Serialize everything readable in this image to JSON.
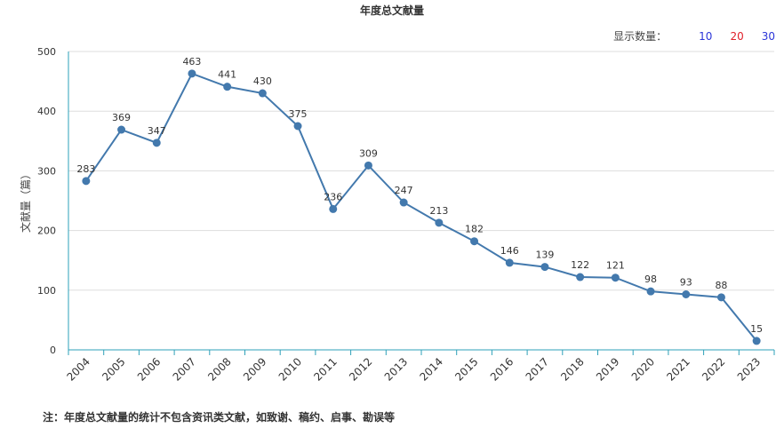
{
  "title": "年度总文献量",
  "display_count": {
    "label": "显示数量：",
    "options": [
      {
        "label": "10",
        "color": "#2b35d8"
      },
      {
        "label": "20",
        "color": "#e0202a"
      },
      {
        "label": "30",
        "color": "#2b35d8"
      }
    ]
  },
  "footnote": "注：年度总文献量的统计不包含资讯类文献，如致谢、稿约、启事、勘误等",
  "colors": {
    "line": "#4379ad",
    "axis": "#2ea0b8",
    "grid": "#dddddd"
  },
  "chart_data": {
    "type": "line",
    "title": "年度总文献量",
    "ylabel": "文献量（篇）",
    "xlabel": "",
    "ylim": [
      0,
      500
    ],
    "yticks": [
      0,
      100,
      200,
      300,
      400,
      500
    ],
    "grid": true,
    "categories": [
      "2004",
      "2005",
      "2006",
      "2007",
      "2008",
      "2009",
      "2010",
      "2011",
      "2012",
      "2013",
      "2014",
      "2015",
      "2016",
      "2017",
      "2018",
      "2019",
      "2020",
      "2021",
      "2022",
      "2023"
    ],
    "series": [
      {
        "values": [
          283,
          369,
          347,
          463,
          441,
          430,
          375,
          236,
          309,
          247,
          213,
          182,
          146,
          139,
          122,
          121,
          98,
          93,
          88,
          15
        ]
      }
    ]
  }
}
